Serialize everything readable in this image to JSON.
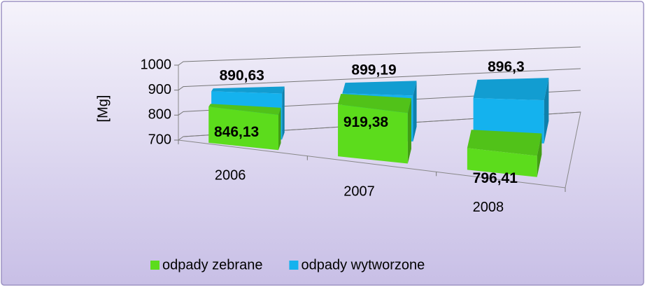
{
  "chart_data": {
    "type": "bar3d",
    "y_label": "[Mg]",
    "categories": [
      "2006",
      "2007",
      "2008"
    ],
    "series": [
      {
        "name": "odpady zebrane",
        "color": "#5cdc1c",
        "values": [
          846.13,
          919.38,
          796.41
        ],
        "value_labels": [
          "846,13",
          "919,38",
          "796,41"
        ]
      },
      {
        "name": "odpady wytworzone",
        "color": "#14b2ee",
        "values": [
          890.63,
          899.19,
          896.3
        ],
        "value_labels": [
          "890,63",
          "899,19",
          "896,3"
        ]
      }
    ],
    "ylim": [
      700,
      1000
    ],
    "yticks": [
      700,
      800,
      900,
      1000
    ],
    "grid": true,
    "legend": "bottom"
  }
}
